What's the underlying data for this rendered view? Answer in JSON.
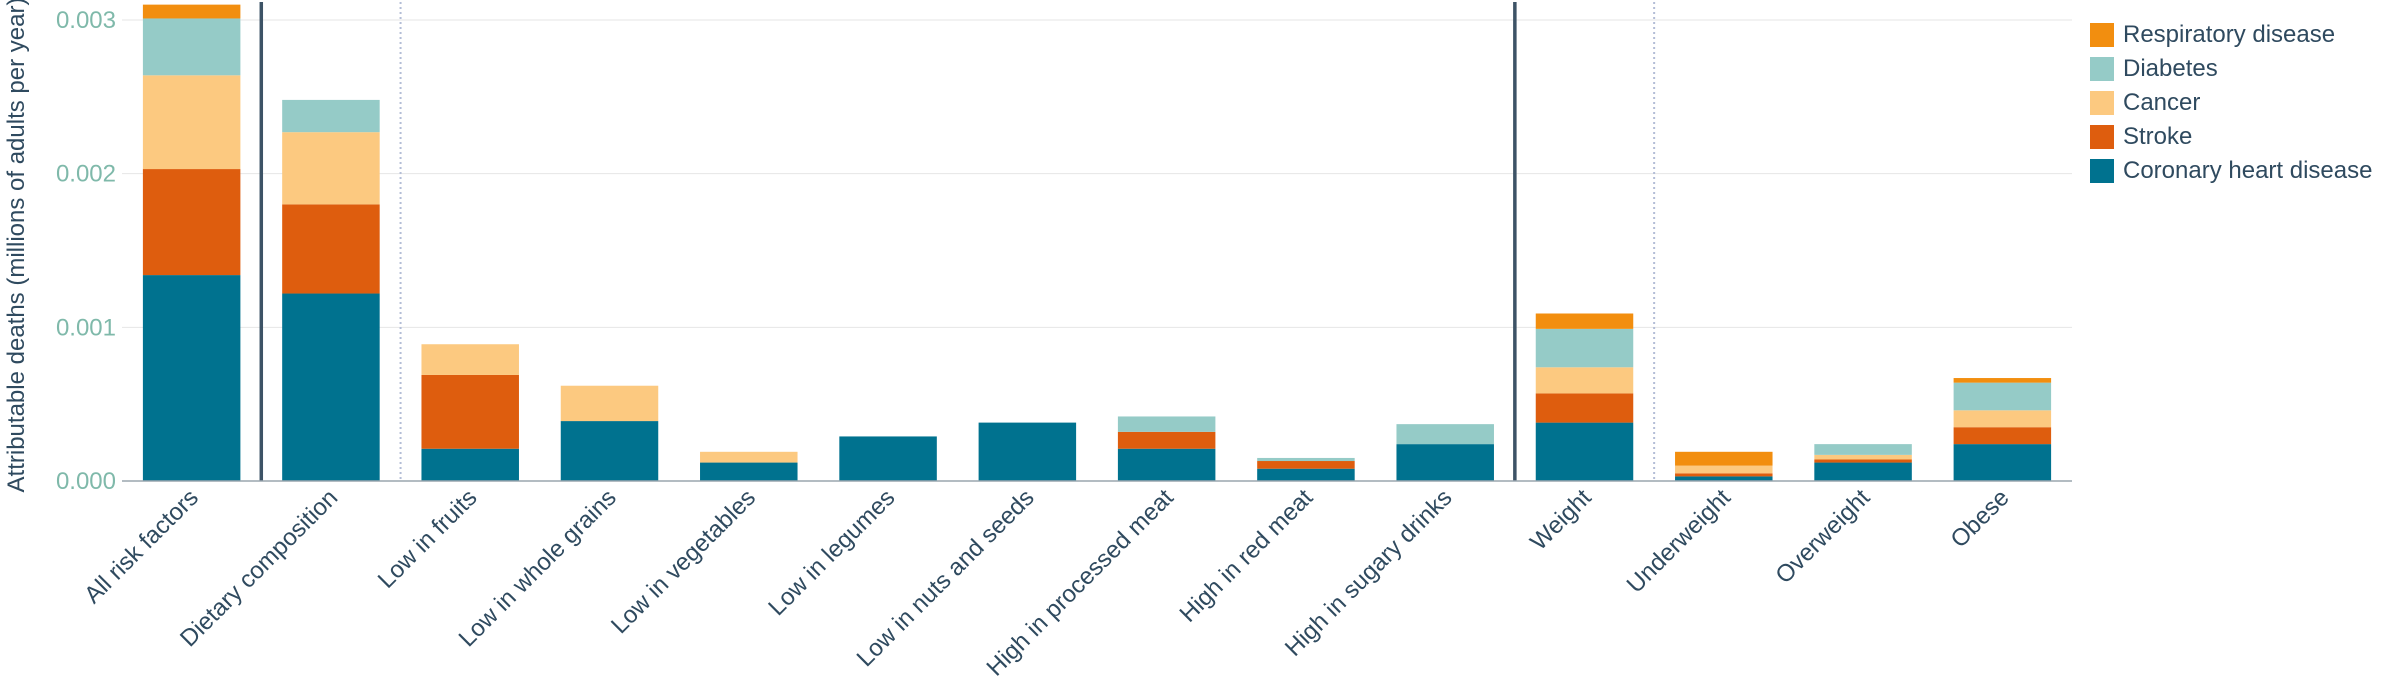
{
  "chart_data": {
    "type": "bar",
    "stacked": true,
    "ylabel": "Attributable deaths (millions of adults per year)",
    "ylim": [
      0,
      0.003
    ],
    "yticks": [
      "0.000",
      "0.001",
      "0.002",
      "0.003"
    ],
    "grid": true,
    "legend_position": "top-right",
    "categories": [
      "All risk factors",
      "Dietary composition",
      "Low in fruits",
      "Low in whole grains",
      "Low in vegetables",
      "Low in legumes",
      "Low in nuts and seeds",
      "High in processed meat",
      "High in red meat",
      "High in sugary drinks",
      "Weight",
      "Underweight",
      "Overweight",
      "Obese"
    ],
    "group_separators": [
      {
        "after_index": 0,
        "style": "solid"
      },
      {
        "after_index": 1,
        "style": "dotted"
      },
      {
        "after_index": 9,
        "style": "solid"
      },
      {
        "after_index": 10,
        "style": "dotted"
      }
    ],
    "series": [
      {
        "name": "Coronary heart disease",
        "color": "#00728f",
        "values": [
          0.00134,
          0.00122,
          0.00021,
          0.00039,
          0.00012,
          0.00029,
          0.00038,
          0.00021,
          8e-05,
          0.00024,
          0.00038,
          3e-05,
          0.00012,
          0.00024
        ]
      },
      {
        "name": "Stroke",
        "color": "#de5d0e",
        "values": [
          0.00069,
          0.00058,
          0.00048,
          0.0,
          0.0,
          0.0,
          0.0,
          0.00011,
          5e-05,
          0.0,
          0.00019,
          2e-05,
          2e-05,
          0.00011
        ]
      },
      {
        "name": "Cancer",
        "color": "#fcc980",
        "values": [
          0.00061,
          0.00047,
          0.0002,
          0.00023,
          7e-05,
          0.0,
          0.0,
          0.0,
          0.0,
          0.0,
          0.00017,
          5e-05,
          3e-05,
          0.00011
        ]
      },
      {
        "name": "Diabetes",
        "color": "#95cbc7",
        "values": [
          0.00037,
          0.00021,
          0.0,
          0.0,
          0.0,
          0.0,
          0.0,
          0.0001,
          2e-05,
          0.00013,
          0.00025,
          0.0,
          7e-05,
          0.00018
        ]
      },
      {
        "name": "Respiratory disease",
        "color": "#f28e0f",
        "values": [
          9e-05,
          0.0,
          0.0,
          0.0,
          0.0,
          0.0,
          0.0,
          0.0,
          0.0,
          0.0,
          0.0001,
          9e-05,
          0.0,
          3e-05
        ]
      }
    ]
  },
  "legend": {
    "items": [
      {
        "label": "Respiratory disease",
        "color": "#f28e0f"
      },
      {
        "label": "Diabetes",
        "color": "#95cbc7"
      },
      {
        "label": "Cancer",
        "color": "#fcc980"
      },
      {
        "label": "Stroke",
        "color": "#de5d0e"
      },
      {
        "label": "Coronary heart disease",
        "color": "#00728f"
      }
    ]
  }
}
